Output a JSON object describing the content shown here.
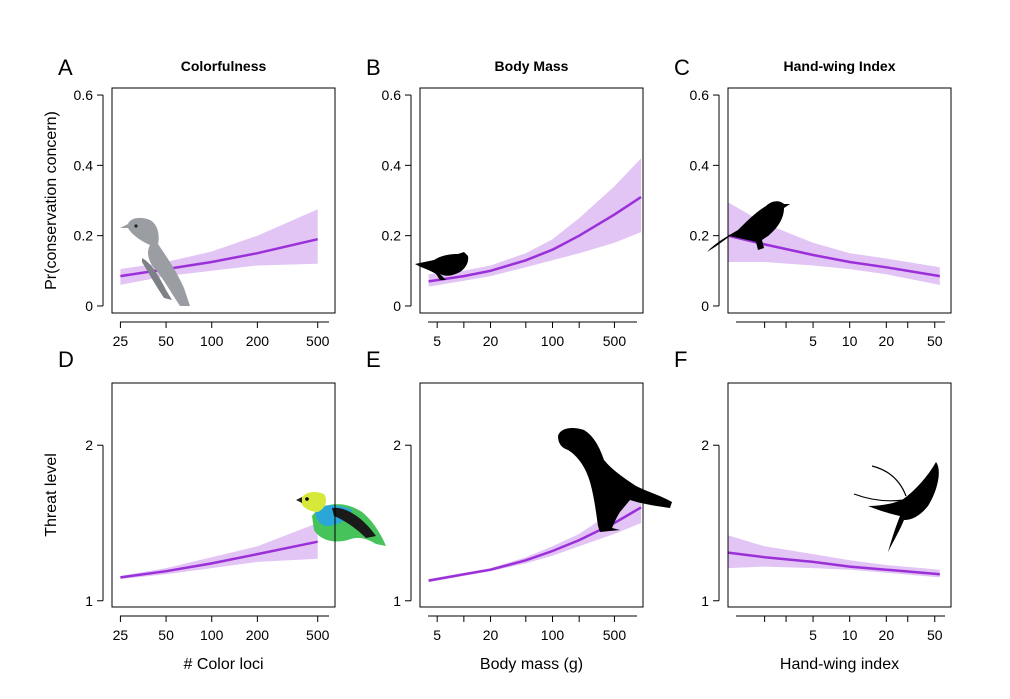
{
  "chart_data": [
    {
      "panel": "A",
      "title": "Colorfulness",
      "type": "line",
      "ylabel": "Pr(conservation concern)",
      "x_scale": "log",
      "xlim": [
        25,
        550
      ],
      "ylim": [
        0,
        0.6
      ],
      "x_ticks": [
        25,
        50,
        100,
        200,
        500
      ],
      "x_tick_labels": [
        "25",
        "50",
        "100",
        "200",
        "500"
      ],
      "y_ticks": [
        0,
        0.2,
        0.4,
        0.6
      ],
      "y_tick_labels": [
        "0",
        "0.2",
        "0.4",
        "0.6"
      ],
      "x": [
        25,
        50,
        100,
        200,
        500
      ],
      "y": [
        0.085,
        0.105,
        0.125,
        0.15,
        0.19
      ],
      "lower": [
        0.06,
        0.085,
        0.1,
        0.115,
        0.12
      ],
      "upper": [
        0.105,
        0.125,
        0.155,
        0.2,
        0.275
      ],
      "silhouette": "grey-bird"
    },
    {
      "panel": "B",
      "title": "Body Mass",
      "type": "line",
      "x_scale": "log",
      "xlim": [
        3,
        1000
      ],
      "ylim": [
        0,
        0.6
      ],
      "x_ticks": [
        5,
        20,
        100,
        500
      ],
      "x_tick_labels": [
        "5",
        "20",
        "100",
        "500"
      ],
      "y_ticks": [
        0,
        0.2,
        0.4,
        0.6
      ],
      "y_tick_labels": [
        "0",
        "0.2",
        "0.4",
        "0.6"
      ],
      "x": [
        4,
        10,
        20,
        50,
        100,
        200,
        500,
        1000
      ],
      "y": [
        0.07,
        0.085,
        0.1,
        0.13,
        0.16,
        0.2,
        0.26,
        0.31
      ],
      "lower": [
        0.055,
        0.072,
        0.085,
        0.11,
        0.13,
        0.15,
        0.18,
        0.21
      ],
      "upper": [
        0.09,
        0.1,
        0.115,
        0.15,
        0.19,
        0.25,
        0.34,
        0.42
      ],
      "silhouette": "small-bird-silhouette"
    },
    {
      "panel": "C",
      "title": "Hand-wing Index",
      "type": "line",
      "x_scale": "log",
      "xlim": [
        1,
        60
      ],
      "ylim": [
        0,
        0.6
      ],
      "x_ticks": [
        5,
        10,
        20,
        50
      ],
      "x_tick_labels": [
        "5",
        "10",
        "20",
        "50"
      ],
      "y_ticks": [
        0,
        0.2,
        0.4,
        0.6
      ],
      "y_tick_labels": [
        "0",
        "0.2",
        "0.4",
        "0.6"
      ],
      "x": [
        1,
        2,
        5,
        10,
        20,
        55
      ],
      "y": [
        0.2,
        0.175,
        0.145,
        0.125,
        0.11,
        0.085
      ],
      "lower": [
        0.125,
        0.125,
        0.115,
        0.105,
        0.09,
        0.06
      ],
      "upper": [
        0.295,
        0.235,
        0.18,
        0.15,
        0.135,
        0.11
      ],
      "silhouette": "perched-bird-silhouette"
    },
    {
      "panel": "D",
      "type": "line",
      "xlabel": "# Color loci",
      "ylabel": "Threat level",
      "x_scale": "log",
      "xlim": [
        25,
        550
      ],
      "ylim": [
        0.95,
        2.5
      ],
      "x_ticks": [
        25,
        50,
        100,
        200,
        500
      ],
      "x_tick_labels": [
        "25",
        "50",
        "100",
        "200",
        "500"
      ],
      "y_ticks": [
        1,
        2
      ],
      "y_tick_labels": [
        "1",
        "2"
      ],
      "x": [
        25,
        50,
        100,
        200,
        500
      ],
      "y": [
        1.15,
        1.19,
        1.24,
        1.3,
        1.38
      ],
      "lower": [
        1.14,
        1.17,
        1.21,
        1.25,
        1.27
      ],
      "upper": [
        1.16,
        1.21,
        1.28,
        1.35,
        1.5
      ],
      "silhouette": "colorful-tanager"
    },
    {
      "panel": "E",
      "type": "line",
      "xlabel": "Body mass (g)",
      "x_scale": "log",
      "xlim": [
        3,
        1000
      ],
      "ylim": [
        0.95,
        2.5
      ],
      "x_ticks": [
        5,
        20,
        100,
        500
      ],
      "x_tick_labels": [
        "5",
        "20",
        "100",
        "500"
      ],
      "y_ticks": [
        1,
        2
      ],
      "y_tick_labels": [
        "1",
        "2"
      ],
      "x": [
        4,
        10,
        20,
        50,
        100,
        200,
        500,
        1000
      ],
      "y": [
        1.13,
        1.17,
        1.2,
        1.26,
        1.32,
        1.39,
        1.5,
        1.6
      ],
      "lower": [
        1.12,
        1.16,
        1.19,
        1.24,
        1.29,
        1.35,
        1.43,
        1.5
      ],
      "upper": [
        1.14,
        1.18,
        1.21,
        1.28,
        1.35,
        1.43,
        1.58,
        1.72
      ],
      "silhouette": "parrot-silhouette"
    },
    {
      "panel": "F",
      "type": "line",
      "xlabel": "Hand-wing index",
      "x_scale": "log",
      "xlim": [
        1,
        60
      ],
      "ylim": [
        0.95,
        2.5
      ],
      "x_ticks": [
        5,
        10,
        20,
        50
      ],
      "x_tick_labels": [
        "5",
        "10",
        "20",
        "50"
      ],
      "y_ticks": [
        1,
        2
      ],
      "y_tick_labels": [
        "1",
        "2"
      ],
      "x": [
        1,
        2,
        5,
        10,
        20,
        55
      ],
      "y": [
        1.31,
        1.28,
        1.25,
        1.22,
        1.2,
        1.17
      ],
      "lower": [
        1.21,
        1.22,
        1.21,
        1.2,
        1.18,
        1.15
      ],
      "upper": [
        1.42,
        1.35,
        1.3,
        1.26,
        1.23,
        1.2
      ],
      "silhouette": "swallow-silhouette"
    }
  ],
  "colors": {
    "line": "#9b30d9",
    "ribbon": "#e2c4f5",
    "axis": "#000000",
    "grey_bird": "#9a9ea3",
    "silhouette": "#000000"
  }
}
